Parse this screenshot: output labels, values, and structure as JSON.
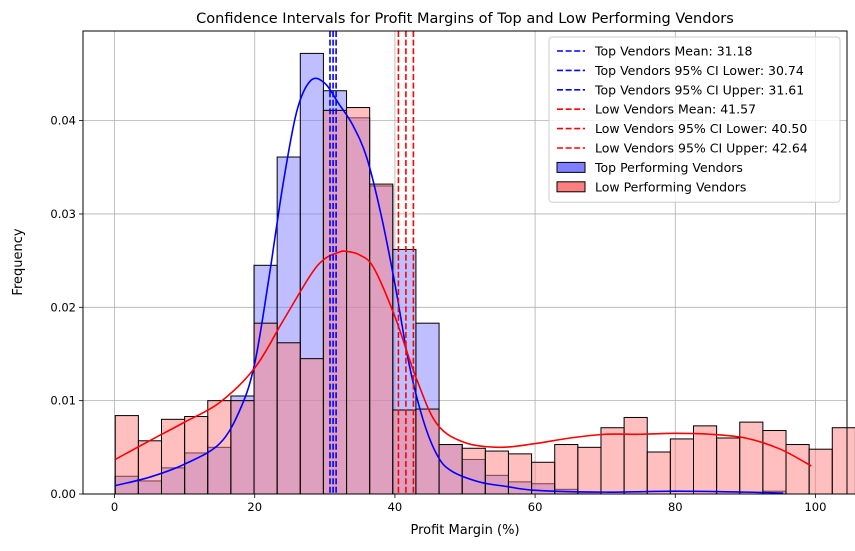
{
  "chart_data": {
    "type": "histogram",
    "title": "Confidence Intervals for Profit Margins of Top and Low Performing Vendors",
    "xlabel": "Profit Margin (%)",
    "ylabel": "Frequency",
    "xlim": [
      -4.5,
      104.5
    ],
    "ylim": [
      0,
      0.0496
    ],
    "xticks": [
      0,
      20,
      40,
      60,
      80,
      100
    ],
    "xtick_labels": [
      "0",
      "20",
      "40",
      "60",
      "80",
      "100"
    ],
    "yticks": [
      0,
      0.01,
      0.02,
      0.03,
      0.04
    ],
    "ytick_labels": [
      "0.00",
      "0.01",
      "0.02",
      "0.03",
      "0.04"
    ],
    "grid": true,
    "legend_position": "top-right",
    "colors": {
      "top": "#0000ff",
      "low": "#ff0000",
      "top_bar_fill": "#7f7fff",
      "low_bar_fill": "#ff7f7f"
    },
    "series": [
      {
        "name": "Top Performing Vendors",
        "bin_start": 0.1,
        "bin_width": 3.3,
        "values": [
          0.0019,
          0.0014,
          0.0028,
          0.0044,
          0.005,
          0.0105,
          0.0245,
          0.0361,
          0.0472,
          0.0432,
          0.0403,
          0.033,
          0.0262,
          0.0183,
          0.0053,
          0.0037,
          0.002,
          0.0013,
          0.0011,
          0.0005,
          0.0002,
          0,
          0,
          0,
          0,
          0,
          0,
          0,
          0.0003
        ]
      },
      {
        "name": "Low Performing Vendors",
        "bin_start": 0.1,
        "bin_width": 3.3,
        "values": [
          0.0084,
          0.0057,
          0.008,
          0.0083,
          0.01,
          0.01,
          0.0183,
          0.0162,
          0.0145,
          0.0411,
          0.0414,
          0.0332,
          0.009,
          0.0091,
          0.0053,
          0.0049,
          0.0046,
          0.0043,
          0.0034,
          0.0053,
          0.005,
          0.0071,
          0.0082,
          0.0045,
          0.0059,
          0.0073,
          0.006,
          0.0077,
          0.0068,
          0.0053,
          0.0048,
          0.0071
        ]
      }
    ],
    "kde": [
      {
        "name": "Top Performing Vendors",
        "x": [
          0.1,
          5,
          10,
          15,
          18,
          20,
          22,
          24,
          26,
          28,
          30,
          32,
          34,
          36,
          38,
          40,
          42,
          44,
          46,
          48,
          52,
          56,
          60,
          70,
          80,
          90,
          95.4
        ],
        "y": [
          0.0009,
          0.0018,
          0.0032,
          0.0054,
          0.0092,
          0.014,
          0.023,
          0.033,
          0.041,
          0.0443,
          0.044,
          0.0418,
          0.0395,
          0.036,
          0.03,
          0.0225,
          0.014,
          0.008,
          0.0042,
          0.0025,
          0.0013,
          0.0008,
          0.0004,
          0.0002,
          0.0003,
          0.0002,
          0.0001
        ]
      },
      {
        "name": "Low Performing Vendors",
        "x": [
          0.1,
          5,
          10,
          15,
          20,
          24,
          28,
          30,
          32,
          33,
          35,
          37,
          40,
          43,
          46,
          50,
          55,
          60,
          65,
          70,
          75,
          80,
          85,
          90,
          95,
          99.4
        ],
        "y": [
          0.0037,
          0.0057,
          0.0077,
          0.0098,
          0.0135,
          0.0185,
          0.0235,
          0.0252,
          0.0259,
          0.026,
          0.0256,
          0.0242,
          0.019,
          0.0125,
          0.0075,
          0.0055,
          0.005,
          0.0054,
          0.006,
          0.0064,
          0.0064,
          0.0065,
          0.0064,
          0.006,
          0.0048,
          0.003
        ]
      }
    ],
    "vlines": [
      {
        "label": "Top Vendors Mean: 31.18",
        "x": 31.18,
        "color": "#0000ff"
      },
      {
        "label": "Top Vendors 95% CI Lower: 30.74",
        "x": 30.74,
        "color": "#0000ff"
      },
      {
        "label": "Top Vendors 95% CI Upper: 31.61",
        "x": 31.61,
        "color": "#0000ff"
      },
      {
        "label": "Low Vendors Mean: 41.57",
        "x": 41.57,
        "color": "#ff0000"
      },
      {
        "label": "Low Vendors 95% CI Lower: 40.50",
        "x": 40.5,
        "color": "#ff0000"
      },
      {
        "label": "Low Vendors 95% CI Upper: 42.64",
        "x": 42.64,
        "color": "#ff0000"
      }
    ],
    "legend": [
      {
        "kind": "line",
        "label": "Top Vendors Mean: 31.18",
        "color": "#0000ff"
      },
      {
        "kind": "line",
        "label": "Top Vendors 95% CI Lower: 30.74",
        "color": "#0000ff"
      },
      {
        "kind": "line",
        "label": "Top Vendors 95% CI Upper: 31.61",
        "color": "#0000ff"
      },
      {
        "kind": "line",
        "label": "Low Vendors Mean: 41.57",
        "color": "#ff0000"
      },
      {
        "kind": "line",
        "label": "Low Vendors 95% CI Lower: 40.50",
        "color": "#ff0000"
      },
      {
        "kind": "line",
        "label": "Low Vendors 95% CI Upper: 42.64",
        "color": "#ff0000"
      },
      {
        "kind": "patch",
        "label": "Top Performing Vendors",
        "color": "#7f7fff"
      },
      {
        "kind": "patch",
        "label": "Low Performing Vendors",
        "color": "#ff7f7f"
      }
    ]
  }
}
